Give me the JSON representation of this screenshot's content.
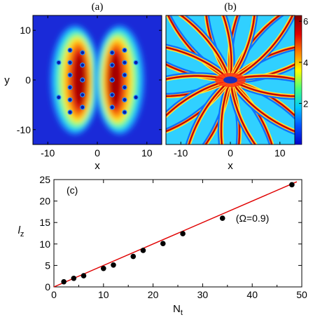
{
  "chart_data": [
    {
      "id": "a",
      "type": "heatmap",
      "panel_label": "(a)",
      "xlabel": "x",
      "ylabel": "y",
      "xlim": [
        -13,
        13
      ],
      "ylim": [
        -13,
        13
      ],
      "xticks": [
        -10,
        0,
        10
      ],
      "yticks": [
        -10,
        0,
        10
      ],
      "xtick_labels": [
        "-10",
        "0",
        "10"
      ],
      "ytick_labels": [
        "-10",
        "0",
        "10"
      ],
      "background_color": "#1a2ad8",
      "description_lobes": [
        {
          "side": "left",
          "center_x": -4.5,
          "center_y": 0,
          "half_width": 5,
          "half_height": 11
        },
        {
          "side": "right",
          "center_x": 4.5,
          "center_y": 0,
          "half_width": 5,
          "half_height": 11
        }
      ],
      "vortices": [
        [
          -3,
          5.5
        ],
        [
          -3,
          3
        ],
        [
          -3,
          0
        ],
        [
          -3,
          -3
        ],
        [
          -3,
          -5.5
        ],
        [
          -5.5,
          6
        ],
        [
          -5.5,
          3.5
        ],
        [
          -5.5,
          1
        ],
        [
          -5.5,
          -1.5
        ],
        [
          -5.5,
          -4
        ],
        [
          -5.5,
          -6.5
        ],
        [
          -7.8,
          3.5
        ],
        [
          -7.8,
          -3.5
        ],
        [
          3,
          5.5
        ],
        [
          3,
          3
        ],
        [
          3,
          0
        ],
        [
          3,
          -3
        ],
        [
          3,
          -5.5
        ],
        [
          5.5,
          6
        ],
        [
          5.5,
          3.5
        ],
        [
          5.5,
          1
        ],
        [
          5.5,
          -1.5
        ],
        [
          5.5,
          -4
        ],
        [
          5.5,
          -6.5
        ],
        [
          7.8,
          3.5
        ],
        [
          7.8,
          -3.5
        ]
      ]
    },
    {
      "id": "b",
      "type": "heatmap",
      "panel_label": "(b)",
      "xlabel": "x",
      "xlim": [
        -13,
        13
      ],
      "ylim": [
        -13,
        13
      ],
      "xticks": [
        -10,
        0,
        10
      ],
      "xtick_labels": [
        "-10",
        "0",
        "10"
      ],
      "colorbar": {
        "min": 0,
        "max": 6.28,
        "ticks": [
          2,
          4,
          6
        ],
        "tick_labels": [
          "2",
          "4",
          "6"
        ],
        "colors": [
          "#0000c8",
          "#0050ff",
          "#00c8ff",
          "#40ff80",
          "#ffff00",
          "#ff8000",
          "#e00000",
          "#800000"
        ]
      }
    },
    {
      "id": "c",
      "type": "scatter",
      "panel_label": "(c)",
      "xlabel": "N",
      "xlabel_sub": "t",
      "ylabel": "l",
      "ylabel_sub": "z",
      "xlim": [
        0,
        50
      ],
      "ylim": [
        0,
        25
      ],
      "xticks": [
        0,
        10,
        20,
        30,
        40,
        50
      ],
      "yticks": [
        0,
        5,
        10,
        15,
        20,
        25
      ],
      "xtick_labels": [
        "0",
        "10",
        "20",
        "30",
        "40",
        "50"
      ],
      "ytick_labels": [
        "0",
        "5",
        "10",
        "15",
        "20",
        "25"
      ],
      "annotation": "(Ω=0.9)",
      "annotation_at": [
        35,
        16
      ],
      "points": [
        [
          2,
          1.2
        ],
        [
          4,
          2
        ],
        [
          6,
          2.6
        ],
        [
          10,
          4.3
        ],
        [
          12,
          5.1
        ],
        [
          16,
          7.1
        ],
        [
          18,
          8.5
        ],
        [
          22,
          10.1
        ],
        [
          26,
          12.4
        ],
        [
          34,
          16
        ],
        [
          48,
          23.8
        ]
      ],
      "fit_line": {
        "x": [
          0,
          49
        ],
        "y": [
          0,
          24.5
        ],
        "color": "#e00000"
      },
      "point_color": "#000000"
    }
  ]
}
